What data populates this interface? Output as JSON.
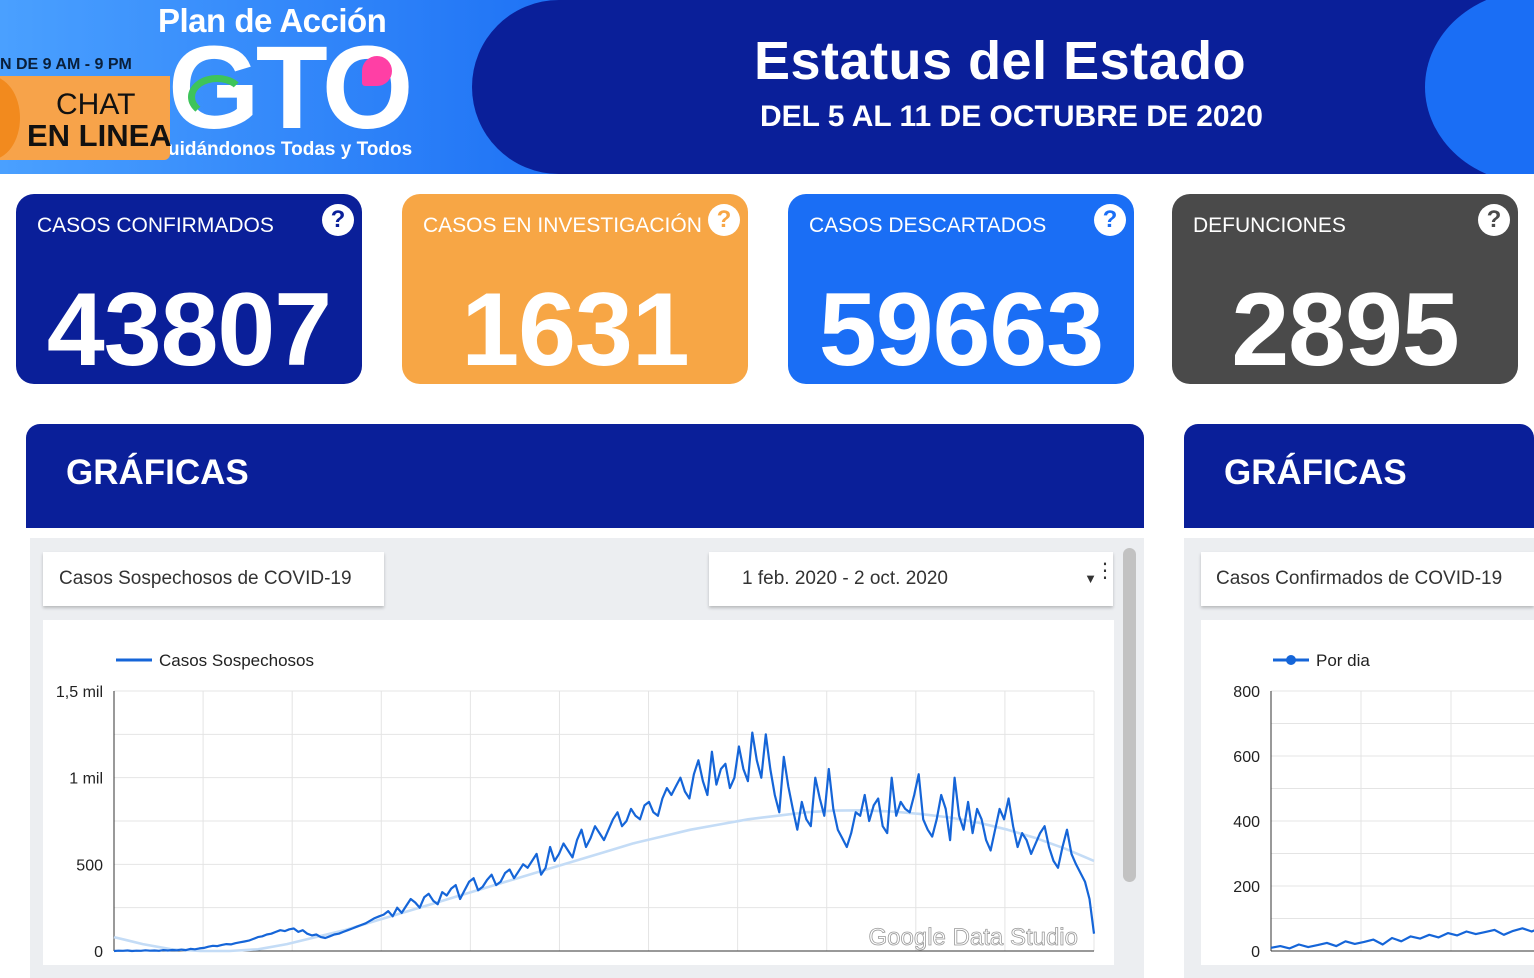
{
  "banner": {
    "logo_top": "Plan de Acción",
    "logo_main": "GTO",
    "logo_tagline": "uidándonos Todas y Todos",
    "hours": "N DE 9 AM - 9 PM",
    "chat_line1": "CHAT",
    "chat_line2": "EN LINEA",
    "title": "Estatus del Estado",
    "subtitle": "DEL 5 AL 11 DE OCTUBRE DE 2020"
  },
  "cards": [
    {
      "label": "CASOS CONFIRMADOS",
      "value": "43807",
      "color": "#0a1f99"
    },
    {
      "label": "CASOS EN INVESTIGACIÓN",
      "value": "1631",
      "color": "#f7a645"
    },
    {
      "label": "CASOS DESCARTADOS",
      "value": "59663",
      "color": "#1a6ef5"
    },
    {
      "label": "DEFUNCIONES",
      "value": "2895",
      "color": "#4a4a4a"
    }
  ],
  "help_glyph": "?",
  "sections": [
    {
      "title": "GRÁFICAS"
    },
    {
      "title": "GRÁFICAS"
    }
  ],
  "left_panel": {
    "metric_selector": "Casos Sospechosos de COVID-19",
    "date_range": "1 feb. 2020 - 2 oct. 2020",
    "watermark": "Google Data Studio"
  },
  "right_panel": {
    "metric_selector": "Casos Confirmados de COVID-19"
  },
  "chart_data": [
    {
      "type": "line",
      "title": "",
      "legend": "top-left",
      "series": [
        {
          "name": "Casos Sospechosos",
          "color": "#1565d8",
          "values": [
            0,
            2,
            1,
            3,
            0,
            2,
            1,
            4,
            2,
            3,
            1,
            5,
            3,
            6,
            4,
            8,
            5,
            12,
            10,
            15,
            18,
            25,
            30,
            28,
            35,
            40,
            38,
            45,
            50,
            55,
            60,
            70,
            80,
            85,
            95,
            100,
            110,
            120,
            115,
            125,
            130,
            110,
            120,
            100,
            90,
            95,
            80,
            75,
            85,
            95,
            100,
            110,
            120,
            130,
            140,
            150,
            160,
            175,
            190,
            200,
            210,
            230,
            200,
            250,
            220,
            260,
            300,
            280,
            250,
            310,
            330,
            290,
            270,
            340,
            320,
            360,
            380,
            300,
            350,
            400,
            420,
            350,
            370,
            410,
            440,
            380,
            400,
            450,
            470,
            420,
            460,
            500,
            480,
            520,
            560,
            440,
            480,
            600,
            520,
            560,
            620,
            580,
            540,
            640,
            700,
            600,
            650,
            720,
            680,
            640,
            700,
            760,
            800,
            720,
            750,
            820,
            780,
            760,
            840,
            860,
            800,
            780,
            880,
            940,
            900,
            950,
            1000,
            920,
            880,
            1020,
            1100,
            980,
            900,
            1150,
            960,
            1050,
            1080,
            940,
            1000,
            1180,
            1050,
            980,
            1260,
            1100,
            1000,
            1250,
            1050,
            900,
            800,
            1120,
            950,
            820,
            700,
            860,
            760,
            720,
            1000,
            880,
            780,
            1050,
            820,
            700,
            650,
            600,
            680,
            800,
            780,
            900,
            750,
            840,
            880,
            720,
            680,
            1000,
            780,
            860,
            820,
            800,
            900,
            1020,
            760,
            700,
            660,
            760,
            900,
            820,
            640,
            1000,
            780,
            700,
            860,
            680,
            820,
            760,
            640,
            580,
            700,
            820,
            760,
            880,
            720,
            600,
            680,
            640,
            560,
            620,
            680,
            720,
            600,
            520,
            480,
            600,
            700,
            560,
            500,
            450,
            400,
            300,
            100
          ]
        },
        {
          "name": "",
          "color": "#c4dcf6",
          "values": [
            80,
            40,
            10,
            0,
            0,
            10,
            40,
            80,
            120,
            170,
            220,
            270,
            320,
            370,
            420,
            470,
            520,
            570,
            620,
            660,
            700,
            730,
            760,
            780,
            800,
            810,
            812,
            805,
            790,
            770,
            740,
            700,
            650,
            590,
            520
          ]
        }
      ],
      "ylim": [
        0,
        1500
      ],
      "yticks": [
        "0",
        "500",
        "1 mil",
        "1,5 mil"
      ]
    },
    {
      "type": "line",
      "title": "",
      "legend": "top-left",
      "series": [
        {
          "name": "Por dia",
          "color": "#1565d8",
          "values": [
            10,
            15,
            8,
            20,
            12,
            18,
            25,
            15,
            30,
            22,
            28,
            35,
            20,
            40,
            30,
            45,
            38,
            50,
            42,
            55,
            48,
            60,
            52,
            58,
            65,
            50,
            62,
            70,
            60,
            72
          ]
        }
      ],
      "ylim": [
        0,
        800
      ],
      "yticks": [
        "0",
        "200",
        "400",
        "600",
        "800"
      ]
    }
  ]
}
